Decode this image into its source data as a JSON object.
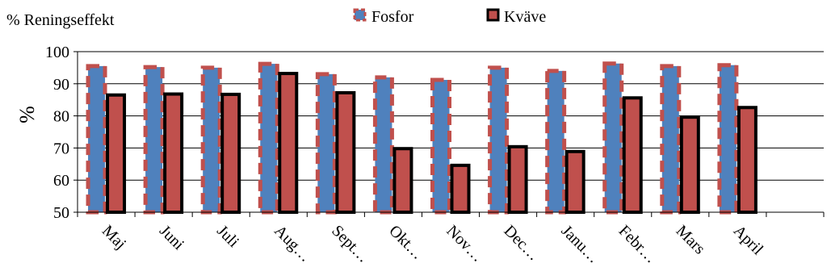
{
  "chart_data": {
    "type": "bar",
    "title": "% Reningseffekt",
    "ylabel": "%",
    "xlabel": "",
    "ylim": [
      50,
      100
    ],
    "yticks": [
      50,
      60,
      70,
      80,
      90,
      100
    ],
    "grid": true,
    "legend_position": "top-center",
    "categories": [
      "Maj",
      "Juni",
      "Juli",
      "Aug…",
      "Sept…",
      "Okt…",
      "Nov…",
      "Dec…",
      "Janu…",
      "Febr…",
      "Mars",
      "April"
    ],
    "series": [
      {
        "name": "Fosfor",
        "fill": "#4f81bd",
        "border": "#c0504d",
        "values": [
          95.5,
          95.2,
          95.0,
          96.2,
          93.0,
          92.0,
          91.2,
          95.0,
          94.0,
          96.3,
          95.5,
          95.8
        ]
      },
      {
        "name": "Kväve",
        "fill": "#c0504d",
        "border": "#000000",
        "values": [
          86.5,
          86.8,
          86.7,
          93.2,
          87.2,
          69.8,
          64.6,
          70.4,
          68.9,
          85.6,
          79.6,
          82.6
        ]
      }
    ]
  }
}
